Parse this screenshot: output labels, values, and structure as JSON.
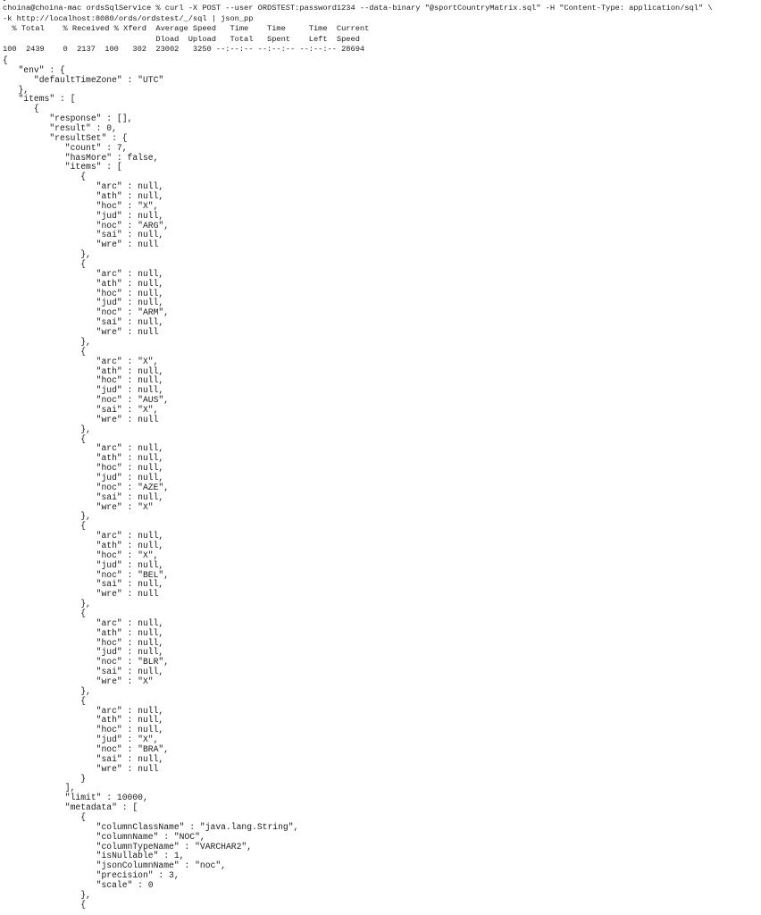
{
  "terminal": {
    "previous_output_fragment": "}",
    "header_lines": [
      "choina@choina-mac ordsSqlService % curl -X POST --user ORDSTEST:password1234 --data-binary \"@sportCountryMatrix.sql\" -H \"Content-Type: application/sql\" \\",
      "-k http://localhost:8080/ords/ordstest/_/sql | json_pp",
      "  % Total    % Received % Xferd  Average Speed   Time    Time     Time  Current",
      "                                 Dload  Upload   Total   Spent    Left  Speed",
      "100  2439    0  2137  100   302  23002   3250 --:--:-- --:--:-- --:--:-- 28694"
    ],
    "json_lines": [
      "{",
      "   \"env\" : {",
      "      \"defaultTimeZone\" : \"UTC\"",
      "   },",
      "   \"items\" : [",
      "      {",
      "         \"response\" : [],",
      "         \"result\" : 0,",
      "         \"resultSet\" : {",
      "            \"count\" : 7,",
      "            \"hasMore\" : false,",
      "            \"items\" : [",
      "               {",
      "                  \"arc\" : null,",
      "                  \"ath\" : null,",
      "                  \"hoc\" : \"X\",",
      "                  \"jud\" : null,",
      "                  \"noc\" : \"ARG\",",
      "                  \"sai\" : null,",
      "                  \"wre\" : null",
      "               },",
      "               {",
      "                  \"arc\" : null,",
      "                  \"ath\" : null,",
      "                  \"hoc\" : null,",
      "                  \"jud\" : null,",
      "                  \"noc\" : \"ARM\",",
      "                  \"sai\" : null,",
      "                  \"wre\" : null",
      "               },",
      "               {",
      "                  \"arc\" : \"X\",",
      "                  \"ath\" : null,",
      "                  \"hoc\" : null,",
      "                  \"jud\" : null,",
      "                  \"noc\" : \"AUS\",",
      "                  \"sai\" : \"X\",",
      "                  \"wre\" : null",
      "               },",
      "               {",
      "                  \"arc\" : null,",
      "                  \"ath\" : null,",
      "                  \"hoc\" : null,",
      "                  \"jud\" : null,",
      "                  \"noc\" : \"AZE\",",
      "                  \"sai\" : null,",
      "                  \"wre\" : \"X\"",
      "               },",
      "               {",
      "                  \"arc\" : null,",
      "                  \"ath\" : null,",
      "                  \"hoc\" : \"X\",",
      "                  \"jud\" : null,",
      "                  \"noc\" : \"BEL\",",
      "                  \"sai\" : null,",
      "                  \"wre\" : null",
      "               },",
      "               {",
      "                  \"arc\" : null,",
      "                  \"ath\" : null,",
      "                  \"hoc\" : null,",
      "                  \"jud\" : null,",
      "                  \"noc\" : \"BLR\",",
      "                  \"sai\" : null,",
      "                  \"wre\" : \"X\"",
      "               },",
      "               {",
      "                  \"arc\" : null,",
      "                  \"ath\" : null,",
      "                  \"hoc\" : null,",
      "                  \"jud\" : \"X\",",
      "                  \"noc\" : \"BRA\",",
      "                  \"sai\" : null,",
      "                  \"wre\" : null",
      "               }",
      "            ],",
      "            \"limit\" : 10000,",
      "            \"metadata\" : [",
      "               {",
      "                  \"columnClassName\" : \"java.lang.String\",",
      "                  \"columnName\" : \"NOC\",",
      "                  \"columnTypeName\" : \"VARCHAR2\",",
      "                  \"isNullable\" : 1,",
      "                  \"jsonColumnName\" : \"noc\",",
      "                  \"precision\" : 3,",
      "                  \"scale\" : 0",
      "               },",
      "               {"
    ]
  }
}
